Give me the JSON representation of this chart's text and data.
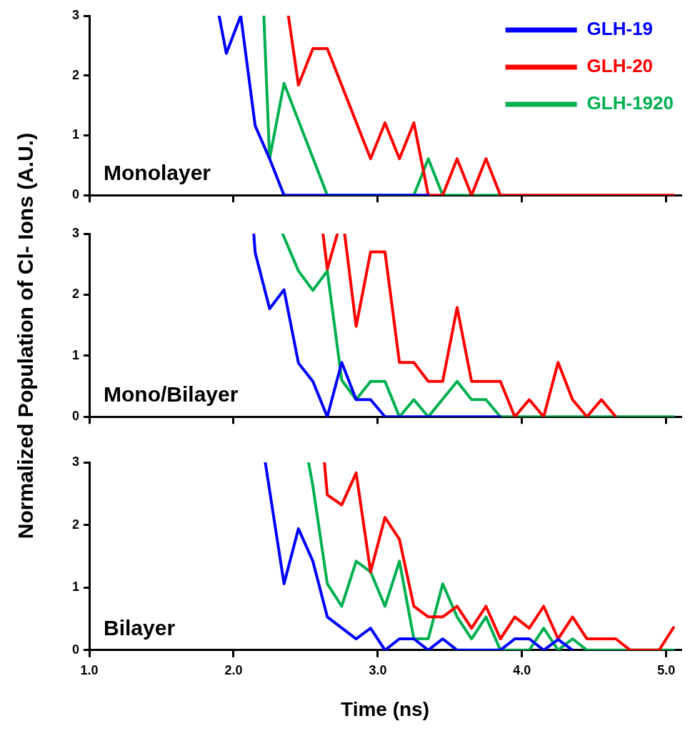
{
  "chart_data": [
    {
      "type": "line",
      "annotations": [
        "Monolayer"
      ],
      "xlim": [
        1.0,
        5.1
      ],
      "xticks": [
        {
          "value": 1,
          "label": null
        },
        {
          "value": 2,
          "label": null
        },
        {
          "value": 3,
          "label": null
        },
        {
          "value": 4,
          "label": null
        },
        {
          "value": 5,
          "label": null
        }
      ],
      "ylim": [
        0,
        3
      ],
      "yticks": [
        0,
        1,
        2,
        3
      ],
      "tick_labels": "y",
      "legend": "top right",
      "marker": "none",
      "line_style": "solid",
      "series": [
        {
          "name": "GLH-19",
          "color": "#0000ff",
          "x": [
            1.9,
            1.95,
            2.05,
            2.15,
            2.25,
            2.35,
            3.35
          ],
          "values": [
            3,
            2.37,
            3,
            1.16,
            0.61,
            0,
            0
          ]
        },
        {
          "name": "GLH-20",
          "color": "#ff0000",
          "x": [
            2.38,
            2.45,
            2.55,
            2.65,
            2.95,
            3.05,
            3.15,
            3.25,
            3.35,
            3.45,
            3.55,
            3.65,
            3.75,
            3.85,
            5.05
          ],
          "values": [
            3,
            1.84,
            2.45,
            2.45,
            0.61,
            1.21,
            0.61,
            1.21,
            0,
            0,
            0.61,
            0,
            0.61,
            0,
            0
          ]
        },
        {
          "name": "GLH-1920",
          "color": "#00b050",
          "x": [
            2.21,
            2.25,
            2.35,
            2.65,
            3.25,
            3.35,
            3.45,
            5.05
          ],
          "values": [
            3,
            0.61,
            1.87,
            0,
            0,
            0.61,
            0,
            0
          ]
        }
      ]
    },
    {
      "type": "line",
      "annotations": [
        "Mono/Bilayer"
      ],
      "ylabel": "Normalized Population of Cl- Ions (A.U.)",
      "xlim": [
        1.0,
        5.1
      ],
      "xticks": [
        {
          "value": 1,
          "label": null
        },
        {
          "value": 2,
          "label": null
        },
        {
          "value": 3,
          "label": null
        },
        {
          "value": 4,
          "label": null
        },
        {
          "value": 5,
          "label": null
        }
      ],
      "ylim": [
        0,
        3
      ],
      "yticks": [
        0,
        1,
        2,
        3
      ],
      "tick_labels": "y",
      "marker": "none",
      "line_style": "solid",
      "series": [
        {
          "color": "#0000ff",
          "x": [
            2.14,
            2.15,
            2.25,
            2.35,
            2.45,
            2.55,
            2.65,
            2.75,
            2.85,
            2.95,
            3.05,
            3.85
          ],
          "values": [
            3,
            2.69,
            1.77,
            2.08,
            0.88,
            0.58,
            0,
            0.89,
            0.28,
            0.28,
            0,
            0
          ]
        },
        {
          "color": "#ff0000",
          "x": [
            2.62,
            2.65,
            2.72,
            2.74,
            2.77,
            2.85,
            2.95,
            3.05,
            3.15,
            3.25,
            3.35,
            3.45,
            3.55,
            3.65,
            3.75,
            3.85,
            3.95,
            4.05,
            4.15,
            4.25,
            4.35,
            4.45,
            4.55,
            4.65
          ],
          "values": [
            3,
            2.42,
            3,
            null,
            3,
            1.48,
            2.7,
            2.7,
            0.89,
            0.89,
            0.58,
            0.58,
            1.79,
            0.58,
            0.58,
            0.58,
            0,
            0.28,
            0,
            0.89,
            0.28,
            0,
            0.28,
            0
          ]
        },
        {
          "color": "#00b050",
          "x": [
            2.34,
            2.45,
            2.55,
            2.65,
            2.75,
            2.85,
            2.95,
            3.05,
            3.15,
            3.25,
            3.35,
            3.55,
            3.65,
            3.75,
            3.85,
            5.05
          ],
          "values": [
            3,
            2.39,
            2.07,
            2.39,
            0.6,
            0.28,
            0.58,
            0.58,
            0,
            0.28,
            0,
            0.58,
            0.28,
            0.28,
            0,
            0
          ]
        }
      ]
    },
    {
      "type": "line",
      "annotations": [
        "Bilayer"
      ],
      "xlabel": "Time (ns)",
      "xlim": [
        1.0,
        5.1
      ],
      "xticks": [
        {
          "value": 1,
          "label": "1.0"
        },
        {
          "value": 2,
          "label": "2.0"
        },
        {
          "value": 3,
          "label": "3.0"
        },
        {
          "value": 4,
          "label": "4.0"
        },
        {
          "value": 5,
          "label": "5.0"
        }
      ],
      "ylim": [
        0,
        3
      ],
      "yticks": [
        0,
        1,
        2,
        3
      ],
      "marker": "none",
      "line_style": "solid",
      "series": [
        {
          "color": "#0000ff",
          "x": [
            2.22,
            2.35,
            2.45,
            2.55,
            2.65,
            2.85,
            2.95,
            3.05,
            3.15,
            3.25,
            3.35,
            3.45,
            3.55,
            3.85,
            3.95,
            4.05,
            4.15,
            4.25,
            4.35
          ],
          "values": [
            3,
            1.06,
            1.94,
            1.42,
            0.53,
            0.18,
            0.35,
            0,
            0.18,
            0.18,
            0,
            0.18,
            0,
            0,
            0.18,
            0.18,
            0,
            0.17,
            0
          ]
        },
        {
          "color": "#ff0000",
          "x": [
            2.63,
            2.65,
            2.75,
            2.85,
            2.95,
            3.05,
            3.15,
            3.25,
            3.35,
            3.45,
            3.55,
            3.65,
            3.75,
            3.85,
            3.95,
            4.05,
            4.15,
            4.25,
            4.35,
            4.45,
            4.55,
            4.65,
            4.75,
            4.95,
            5.05
          ],
          "values": [
            3,
            2.48,
            2.32,
            2.83,
            1.25,
            2.12,
            1.77,
            0.7,
            0.53,
            0.53,
            0.7,
            0.35,
            0.7,
            0.18,
            0.53,
            0.35,
            0.7,
            0.18,
            0.53,
            0.18,
            0.18,
            0.18,
            0,
            0,
            0.36
          ]
        },
        {
          "color": "#00b050",
          "x": [
            2.52,
            2.55,
            2.65,
            2.75,
            2.85,
            2.95,
            3.05,
            3.15,
            3.25,
            3.35,
            3.45,
            3.55,
            3.65,
            3.75,
            3.85,
            4.05,
            4.15,
            4.25,
            4.35,
            4.45,
            5.05
          ],
          "values": [
            3,
            2.62,
            1.06,
            0.7,
            1.42,
            1.25,
            0.7,
            1.42,
            0.18,
            0.18,
            1.06,
            0.53,
            0.18,
            0.53,
            0,
            0,
            0.35,
            0,
            0.18,
            0,
            0
          ]
        }
      ]
    }
  ]
}
